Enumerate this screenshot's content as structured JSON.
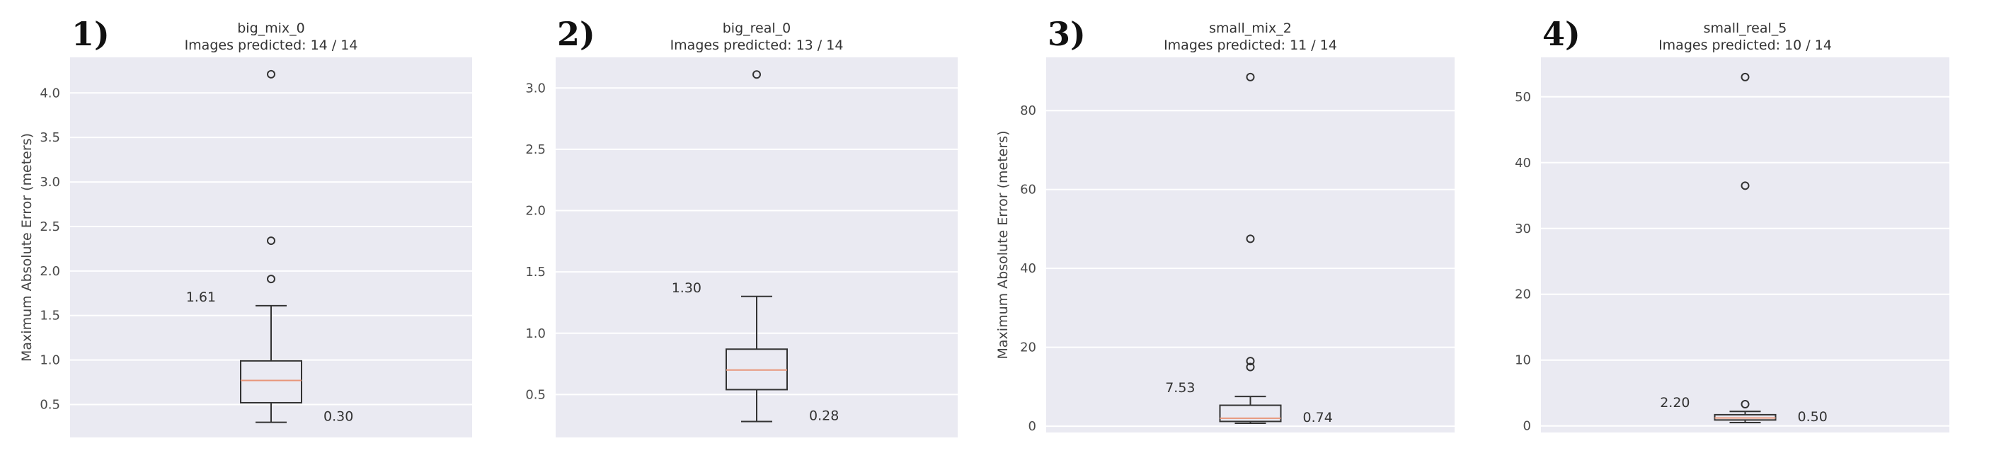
{
  "chart_data": [
    {
      "type": "box",
      "panel_label": "1)",
      "title": "big_mix_0",
      "subtitle": "Images predicted: 14 / 14",
      "ylabel": "Maximum Absolute Error (meters)",
      "ylim": [
        0.13,
        4.4
      ],
      "yticks": [
        0.5,
        1.0,
        1.5,
        2.0,
        2.5,
        3.0,
        3.5,
        4.0
      ],
      "ytick_labels": [
        "0.5",
        "1.0",
        "1.5",
        "2.0",
        "2.5",
        "3.0",
        "3.5",
        "4.0"
      ],
      "grid": true,
      "box": {
        "whisker_low": 0.3,
        "q1": 0.52,
        "median": 0.77,
        "q3": 0.99,
        "whisker_high": 1.61
      },
      "outliers": [
        1.91,
        2.34,
        4.21
      ],
      "annotations": {
        "upper": "1.61",
        "lower": "0.30"
      }
    },
    {
      "type": "box",
      "panel_label": "2)",
      "title": "big_real_0",
      "subtitle": "Images predicted: 13 / 14",
      "ylabel": "",
      "ylim": [
        0.15,
        3.25
      ],
      "yticks": [
        0.5,
        1.0,
        1.5,
        2.0,
        2.5,
        3.0
      ],
      "ytick_labels": [
        "0.5",
        "1.0",
        "1.5",
        "2.0",
        "2.5",
        "3.0"
      ],
      "grid": true,
      "box": {
        "whisker_low": 0.28,
        "q1": 0.54,
        "median": 0.7,
        "q3": 0.87,
        "whisker_high": 1.3
      },
      "outliers": [
        3.11
      ],
      "annotations": {
        "upper": "1.30",
        "lower": "0.28"
      }
    },
    {
      "type": "box",
      "panel_label": "3)",
      "title": "small_mix_2",
      "subtitle": "Images predicted: 11 / 14",
      "ylabel": "Maximum Absolute Error (meters)",
      "ylim": [
        -1.6,
        93.5
      ],
      "yticks": [
        0,
        20,
        40,
        60,
        80
      ],
      "ytick_labels": [
        "0",
        "20",
        "40",
        "60",
        "80"
      ],
      "grid": true,
      "box": {
        "whisker_low": 0.74,
        "q1": 1.2,
        "median": 2.0,
        "q3": 5.3,
        "whisker_high": 7.53
      },
      "outliers": [
        15.0,
        16.5,
        47.5,
        88.5
      ],
      "annotations": {
        "upper": "7.53",
        "lower": "0.74"
      }
    },
    {
      "type": "box",
      "panel_label": "4)",
      "title": "small_real_5",
      "subtitle": "Images predicted: 10 / 14",
      "ylabel": "",
      "ylim": [
        -1.0,
        56.0
      ],
      "yticks": [
        0,
        10,
        20,
        30,
        40,
        50
      ],
      "ytick_labels": [
        "0",
        "10",
        "20",
        "30",
        "40",
        "50"
      ],
      "grid": true,
      "box": {
        "whisker_low": 0.5,
        "q1": 0.9,
        "median": 1.2,
        "q3": 1.7,
        "whisker_high": 2.2
      },
      "outliers": [
        3.3,
        36.5,
        53.0
      ],
      "annotations": {
        "upper": "2.20",
        "lower": "0.50"
      }
    }
  ],
  "colors": {
    "plot_background": "#eaeaf2",
    "grid": "#ffffff",
    "box": "#333333",
    "median": "#e8967a",
    "outlier": "#333333"
  }
}
